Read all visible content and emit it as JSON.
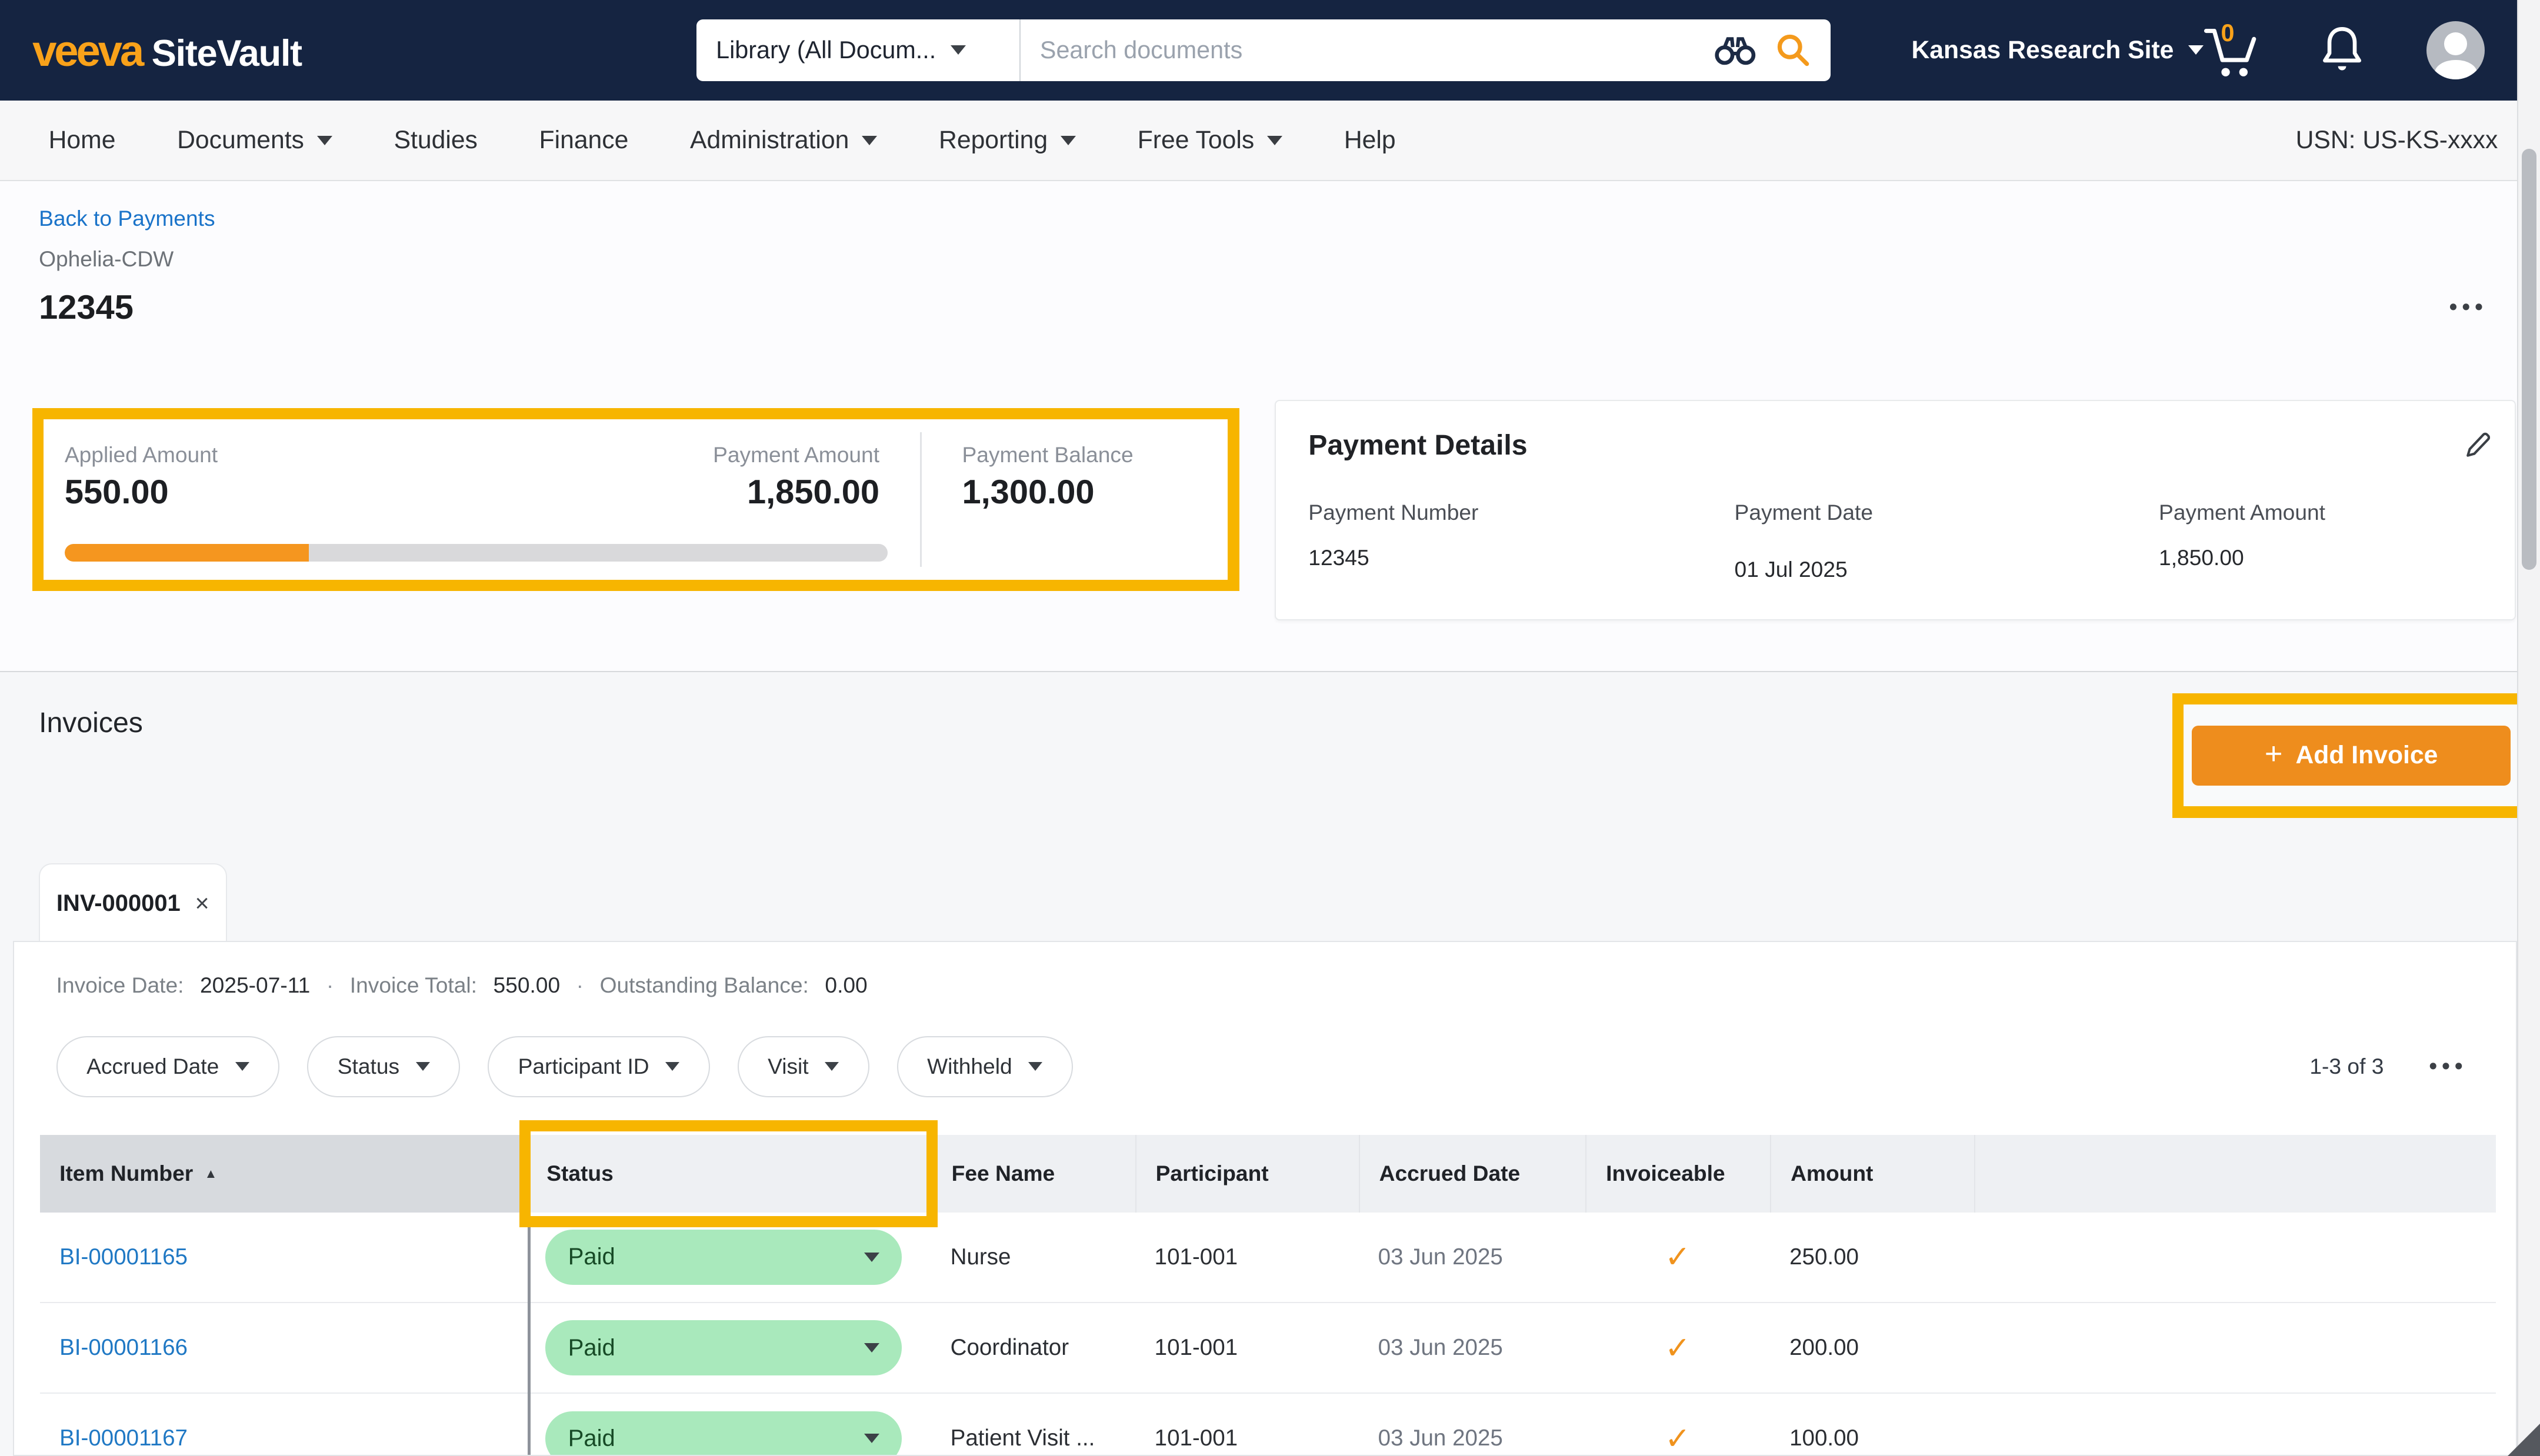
{
  "colors": {
    "navy": "#152441",
    "brand_orange": "#f9a21a",
    "accent_orange": "#ee8d1d",
    "highlight_yellow": "#f7b500",
    "link_blue": "#1a73c9",
    "paid_green_bg": "#a9e9bc",
    "paid_green_text": "#174a26",
    "check_orange": "#f0931d"
  },
  "topbar": {
    "brand_veeva": "veeva",
    "brand_sitevault": "SiteVault",
    "search_scope": "Library (All Docum...",
    "search_placeholder": "Search documents",
    "site_name": "Kansas Research Site",
    "cart_count": "0"
  },
  "nav": {
    "items": [
      {
        "label": "Home"
      },
      {
        "label": "Documents"
      },
      {
        "label": "Studies"
      },
      {
        "label": "Finance"
      },
      {
        "label": "Administration"
      },
      {
        "label": "Reporting"
      },
      {
        "label": "Free Tools"
      },
      {
        "label": "Help"
      }
    ],
    "usn": "USN: US-KS-xxxx"
  },
  "breadcrumb": {
    "back": "Back to Payments",
    "record_type": "Ophelia-CDW",
    "title": "12345",
    "more": "•••"
  },
  "summary": {
    "applied_label": "Applied Amount",
    "applied_value": "550.00",
    "payment_amount_label": "Payment Amount",
    "payment_amount_value": "1,850.00",
    "balance_label": "Payment Balance",
    "balance_value": "1,300.00",
    "progress_pct": 29.7
  },
  "payment_details": {
    "title": "Payment Details",
    "fields": [
      {
        "label": "Payment Number",
        "value": "12345"
      },
      {
        "label": "Payment Date",
        "value": "01 Jul 2025"
      },
      {
        "label": "Payment Amount",
        "value": "1,850.00"
      }
    ]
  },
  "invoices": {
    "title": "Invoices",
    "add_button": "Add Invoice",
    "add_plus": "+",
    "tab": {
      "label": "INV-000001",
      "close": "×"
    },
    "meta": [
      {
        "label": "Invoice Date:",
        "value": "2025-07-11"
      },
      {
        "label": "Invoice Total:",
        "value": "550.00"
      },
      {
        "label": "Outstanding Balance:",
        "value": "0.00"
      }
    ],
    "meta_separator": "·",
    "filters": [
      "Accrued Date",
      "Status",
      "Participant ID",
      "Visit",
      "Withheld"
    ],
    "range": "1-3 of 3",
    "overflow": "•••"
  },
  "table": {
    "columns": [
      "Item Number",
      "Status",
      "Fee Name",
      "Participant",
      "Accrued Date",
      "Invoiceable",
      "Amount"
    ],
    "sort_glyph": "▲",
    "rows": [
      {
        "item": "BI-00001165",
        "status": "Paid",
        "fee": "Nurse",
        "participant": "101-001",
        "accrued": "03 Jun 2025",
        "invoiceable": "✓",
        "amount": "250.00"
      },
      {
        "item": "BI-00001166",
        "status": "Paid",
        "fee": "Coordinator",
        "participant": "101-001",
        "accrued": "03 Jun 2025",
        "invoiceable": "✓",
        "amount": "200.00"
      },
      {
        "item": "BI-00001167",
        "status": "Paid",
        "fee": "Patient Visit ...",
        "participant": "101-001",
        "accrued": "03 Jun 2025",
        "invoiceable": "✓",
        "amount": "100.00"
      }
    ]
  }
}
